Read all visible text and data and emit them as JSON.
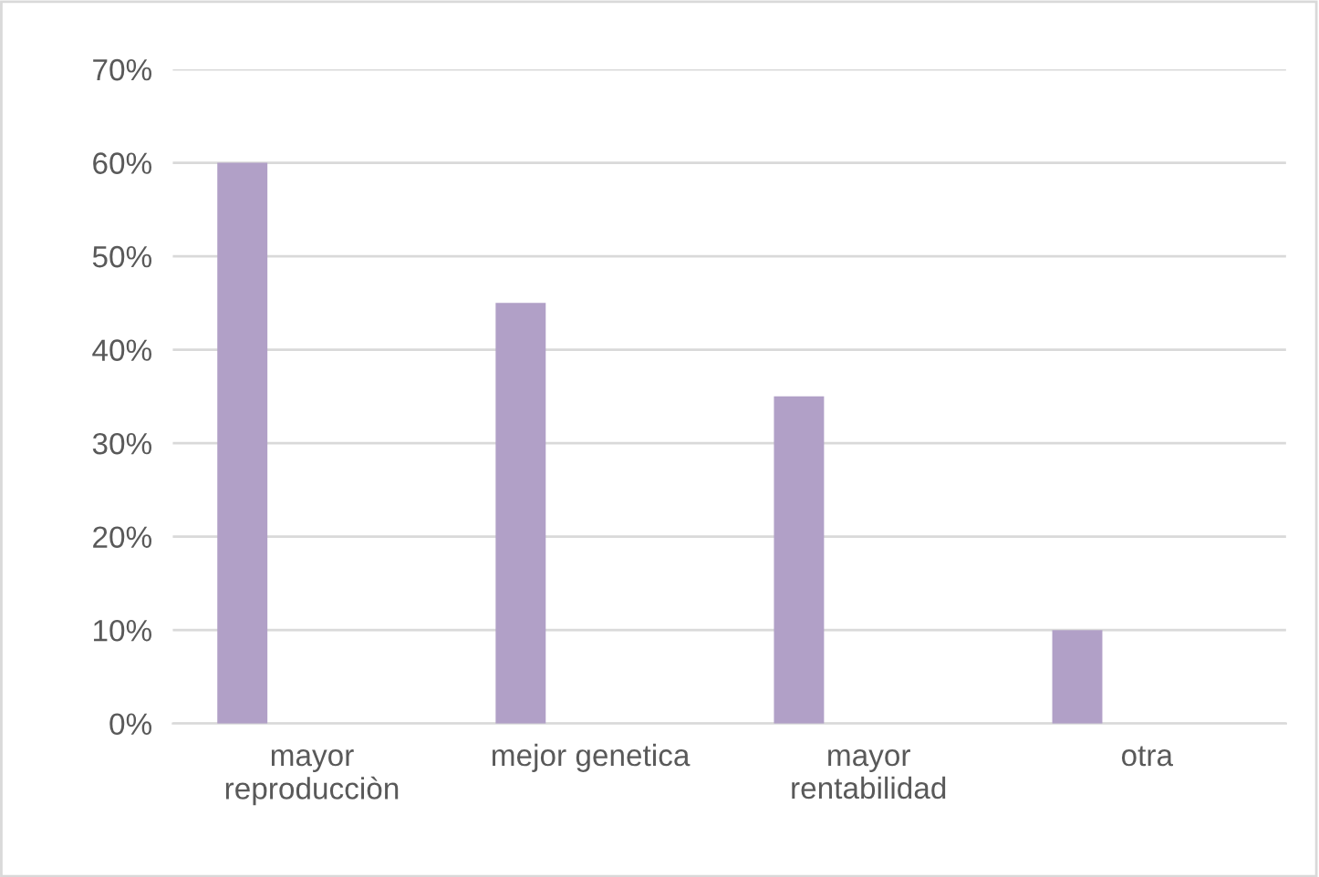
{
  "chart_data": {
    "type": "bar",
    "categories": [
      "mayor\nreproducciòn",
      "mejor genetica",
      "mayor\nrentabilidad",
      "otra"
    ],
    "values": [
      60,
      45,
      35,
      10
    ],
    "color": "#b1a0c7",
    "ylim": [
      0,
      70
    ],
    "yticks": [
      {
        "value": 0,
        "label": "0%"
      },
      {
        "value": 10,
        "label": "10%"
      },
      {
        "value": 20,
        "label": "20%"
      },
      {
        "value": 30,
        "label": "30%"
      },
      {
        "value": 40,
        "label": "40%"
      },
      {
        "value": 50,
        "label": "50%"
      },
      {
        "value": 60,
        "label": "60%"
      },
      {
        "value": 70,
        "label": "70%"
      }
    ],
    "grid": "y",
    "legend": false
  }
}
